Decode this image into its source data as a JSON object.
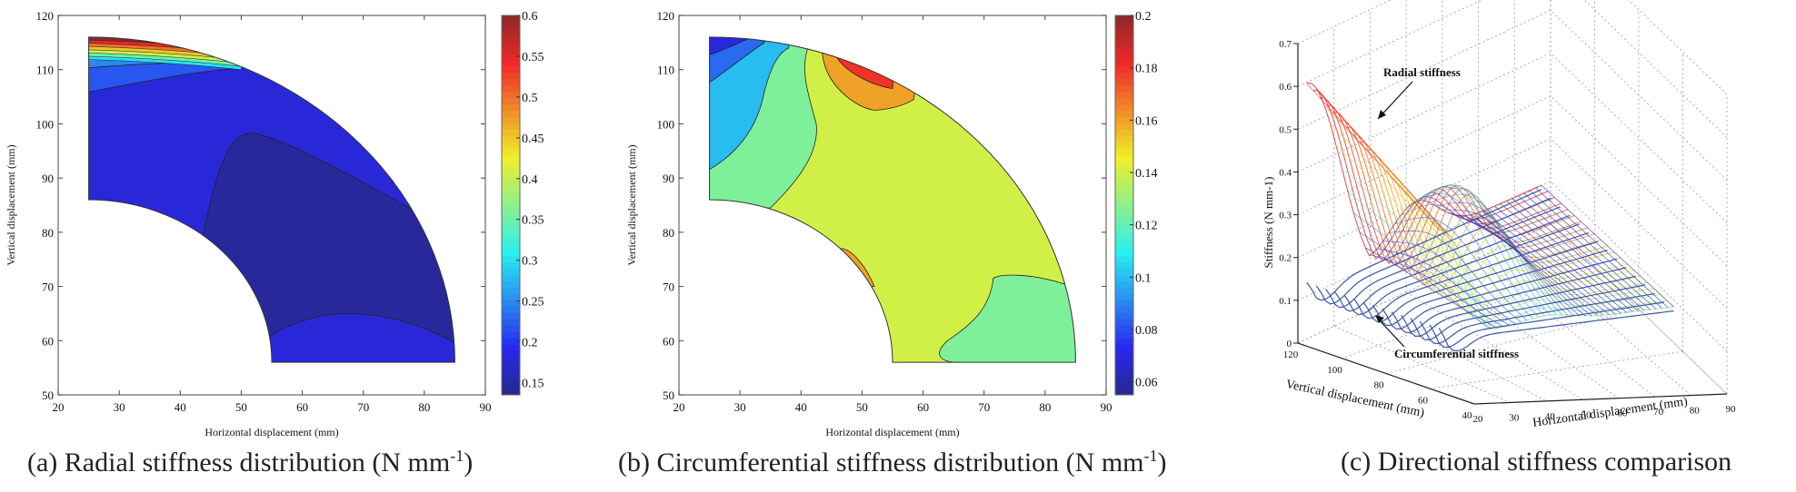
{
  "figure": {
    "captions": [
      {
        "prefix": "(a) Radial stiffness distribution (N mm",
        "sup": "-1",
        "suffix": ")"
      },
      {
        "prefix": "(b) Circumferential stiffness distribution (N mm",
        "sup": "-1",
        "suffix": ")"
      },
      {
        "prefix": "(c) Directional stiffness comparison",
        "sup": "",
        "suffix": ""
      }
    ]
  },
  "chart_data": [
    {
      "id": "a",
      "type": "heatmap",
      "subtype": "filled-contour",
      "title": "(a) Radial stiffness distribution (N mm-1)",
      "xlabel": "Horizontal displacement (mm)",
      "ylabel": "Vertical displacement (mm)",
      "xlim": [
        20,
        90
      ],
      "ylim": [
        50,
        120
      ],
      "xticks": [
        20,
        30,
        40,
        50,
        60,
        70,
        80,
        90
      ],
      "yticks": [
        50,
        60,
        70,
        80,
        90,
        100,
        110,
        120
      ],
      "grid": false,
      "domain": {
        "shape": "quarter-annulus",
        "center": [
          25,
          56
        ],
        "inner_radius": 30,
        "outer_radius": 60
      },
      "colorbar": {
        "location": "right",
        "min": 0.135,
        "max": 0.6,
        "ticks": [
          0.15,
          0.2,
          0.25,
          0.3,
          0.35,
          0.4,
          0.45,
          0.5,
          0.55,
          0.6
        ],
        "colormap": "jet"
      },
      "regions": [
        {
          "label": "lowest (bottom-right band)",
          "value": 0.14
        },
        {
          "label": "lower-right band",
          "value": 0.16
        },
        {
          "label": "bulk / outer corner",
          "value": 0.18
        },
        {
          "label": "upper-left",
          "value": 0.22
        },
        {
          "label": "outer rim",
          "value": 0.25
        },
        {
          "label": "top edge bands",
          "values": [
            0.3,
            0.35,
            0.4,
            0.45,
            0.5,
            0.55,
            0.6
          ]
        }
      ]
    },
    {
      "id": "b",
      "type": "heatmap",
      "subtype": "filled-contour",
      "title": "(b) Circumferential stiffness distribution (N mm-1)",
      "xlabel": "Horizontal displacement (mm)",
      "ylabel": "Vertical displacement (mm)",
      "xlim": [
        20,
        90
      ],
      "ylim": [
        50,
        120
      ],
      "xticks": [
        20,
        30,
        40,
        50,
        60,
        70,
        80,
        90
      ],
      "yticks": [
        50,
        60,
        70,
        80,
        90,
        100,
        110,
        120
      ],
      "grid": false,
      "domain": {
        "shape": "quarter-annulus",
        "center": [
          25,
          56
        ],
        "inner_radius": 30,
        "outer_radius": 60
      },
      "colorbar": {
        "location": "right",
        "min": 0.055,
        "max": 0.2,
        "ticks": [
          0.06,
          0.08,
          0.1,
          0.12,
          0.14,
          0.16,
          0.18,
          0.2
        ],
        "colormap": "jet"
      },
      "regions": [
        {
          "label": "top-left corner",
          "value": 0.07
        },
        {
          "label": "upper-left band",
          "value": 0.085
        },
        {
          "label": "left lobe",
          "value": 0.1
        },
        {
          "label": "left-center band / lower-right lobe / outer rim patch",
          "value": 0.125
        },
        {
          "label": "bulk",
          "value": 0.14
        },
        {
          "label": "top hot spot outer",
          "value": 0.16
        },
        {
          "label": "top hot spot core",
          "value": 0.18
        },
        {
          "label": "inner edge spot",
          "value": 0.16
        }
      ]
    },
    {
      "id": "c",
      "type": "surface3d",
      "title": "(c) Directional stiffness comparison",
      "xlabel": "Horizontal displacement (mm)",
      "ylabel": "Vertical displacement (mm)",
      "zlabel": "Stiffness (N mm-1)",
      "xlim": [
        20,
        90
      ],
      "ylim": [
        40,
        120
      ],
      "zlim": [
        0,
        0.7
      ],
      "xticks": [
        20,
        30,
        40,
        50,
        60,
        70,
        80,
        90
      ],
      "yticks": [
        40,
        60,
        80,
        100,
        120
      ],
      "zticks": [
        0,
        0.1,
        0.2,
        0.3,
        0.4,
        0.5,
        0.6,
        0.7
      ],
      "grid": true,
      "annotations": [
        "Radial stiffness",
        "Circumferential sitffness"
      ],
      "series": [
        {
          "name": "Radial stiffness",
          "peak": 0.63,
          "secondary_peak": 0.32,
          "trough": 0.22,
          "floor": 0.13
        },
        {
          "name": "Circumferential sitffness",
          "peak": 0.16,
          "typical": 0.12,
          "min": 0.07
        }
      ]
    }
  ]
}
